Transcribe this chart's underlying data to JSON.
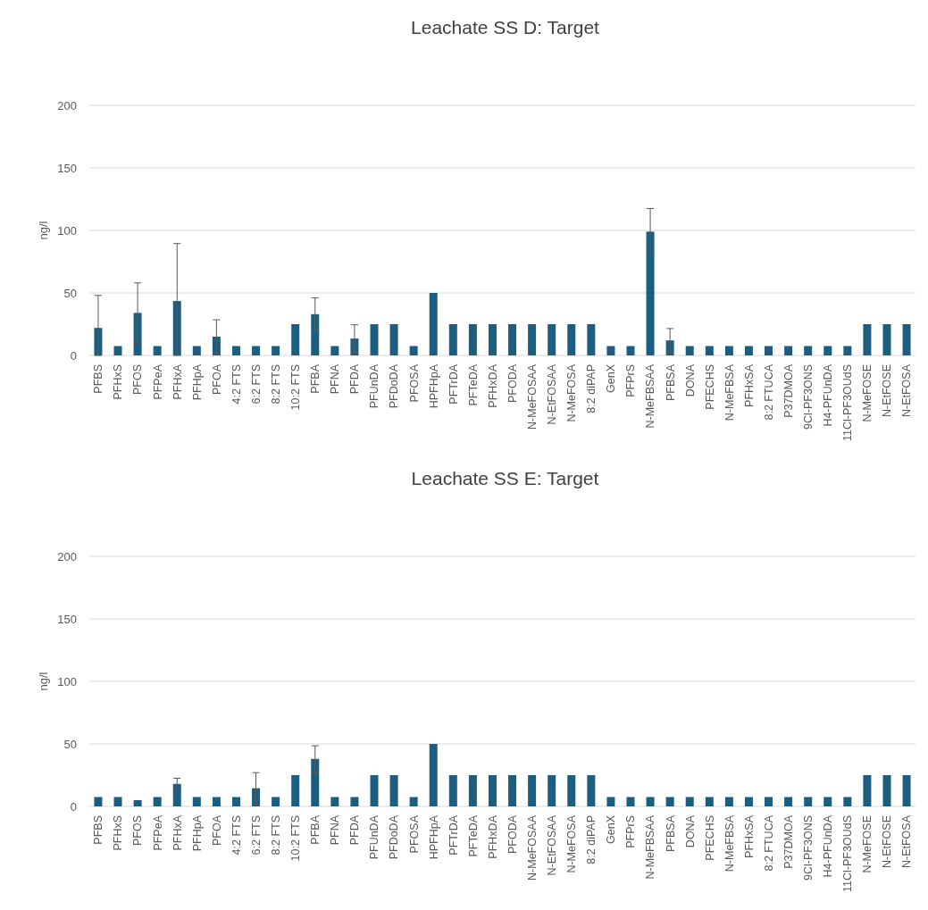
{
  "chart_data": [
    {
      "type": "bar",
      "title": "Leachate SS D: Target",
      "ylabel": "ng/l",
      "categories": [
        "PFBS",
        "PFHxS",
        "PFOS",
        "PFPeA",
        "PFHxA",
        "PFHpA",
        "PFOA",
        "4:2 FTS",
        "6:2 FTS",
        "8:2 FTS",
        "10:2 FTS",
        "PFBA",
        "PFNA",
        "PFDA",
        "PFUnDA",
        "PFDoDA",
        "PFOSA",
        "HPFHpA",
        "PFTrDA",
        "PFTeDA",
        "PFHxDA",
        "PFODA",
        "N-MeFOSAA",
        "N-EtFOSAA",
        "N-MeFOSA",
        "8:2 diPAP",
        "GenX",
        "PFPrS",
        "N-MeFBSAA",
        "PFBSA",
        "DONA",
        "PFECHS",
        "N-MeFBSA",
        "PFHxSA",
        "8:2 FTUCA",
        "P37DMOA",
        "9Cl-PF3ONS",
        "H4-PFUnDA",
        "11Cl-PF3OUdS",
        "N-MeFOSE",
        "N-EtFOSE",
        "N-EtFOSA"
      ],
      "series": [
        {
          "color": "#1b5e80",
          "values": [
            22,
            7.5,
            34,
            7.5,
            43.5,
            7.5,
            15,
            7.5,
            7.5,
            7.5,
            25,
            33,
            7.5,
            13.5,
            25,
            25,
            7.5,
            50,
            25,
            25,
            25,
            25,
            25,
            25,
            25,
            25,
            7.5,
            7.5,
            99,
            12,
            7.5,
            7.5,
            7.5,
            7.5,
            7.5,
            7.5,
            7.5,
            7.5,
            7.5,
            25,
            25,
            25
          ],
          "errors": [
            [
              0,
              48
            ],
            null,
            24,
            null,
            [
              0,
              89.5
            ],
            null,
            13.5,
            null,
            null,
            null,
            null,
            13,
            null,
            11,
            null,
            null,
            null,
            null,
            null,
            null,
            null,
            null,
            null,
            null,
            null,
            null,
            null,
            null,
            18.5,
            9.5,
            null,
            null,
            null,
            null,
            null,
            null,
            null,
            null,
            null,
            null,
            null,
            null
          ]
        }
      ],
      "ylim": [
        0,
        200
      ],
      "yticks": [
        0,
        50,
        100,
        150,
        200
      ],
      "grid": "y"
    },
    {
      "type": "bar",
      "title": "Leachate SS E: Target",
      "ylabel": "ng/l",
      "categories": [
        "PFBS",
        "PFHxS",
        "PFOS",
        "PFPeA",
        "PFHxA",
        "PFHpA",
        "PFOA",
        "4:2 FTS",
        "6:2 FTS",
        "8:2 FTS",
        "10:2 FTS",
        "PFBA",
        "PFNA",
        "PFDA",
        "PFUnDA",
        "PFDoDA",
        "PFOSA",
        "HPFHpA",
        "PFTrDA",
        "PFTeDA",
        "PFHxDA",
        "PFODA",
        "N-MeFOSAA",
        "N-EtFOSAA",
        "N-MeFOSA",
        "8:2 diPAP",
        "GenX",
        "PFPrS",
        "N-MeFBSAA",
        "PFBSA",
        "DONA",
        "PFECHS",
        "N-MeFBSA",
        "PFHxSA",
        "8:2 FTUCA",
        "P37DMOA",
        "9Cl-PF3ONS",
        "H4-PFUnDA",
        "11Cl-PF3OUdS",
        "N-MeFOSE",
        "N-EtFOSE",
        "N-EtFOSA"
      ],
      "series": [
        {
          "color": "#1b5e80",
          "values": [
            7.5,
            7.5,
            5,
            7.5,
            18,
            7.5,
            7.5,
            7.5,
            14.5,
            7.5,
            25,
            38,
            7.5,
            7.5,
            25,
            25,
            7.5,
            50,
            25,
            25,
            25,
            25,
            25,
            25,
            25,
            25,
            7.5,
            7.5,
            7.5,
            7.5,
            7.5,
            7.5,
            7.5,
            7.5,
            7.5,
            7.5,
            7.5,
            7.5,
            7.5,
            25,
            25,
            25
          ],
          "errors": [
            null,
            null,
            null,
            null,
            4.5,
            null,
            null,
            null,
            12.5,
            null,
            null,
            10.5,
            null,
            null,
            null,
            null,
            null,
            null,
            null,
            null,
            null,
            null,
            null,
            null,
            null,
            null,
            null,
            null,
            null,
            null,
            null,
            null,
            null,
            null,
            null,
            null,
            null,
            null,
            null,
            null,
            null,
            null
          ]
        }
      ],
      "ylim": [
        0,
        200
      ],
      "yticks": [
        0,
        50,
        100,
        150,
        200
      ],
      "grid": "y"
    }
  ]
}
